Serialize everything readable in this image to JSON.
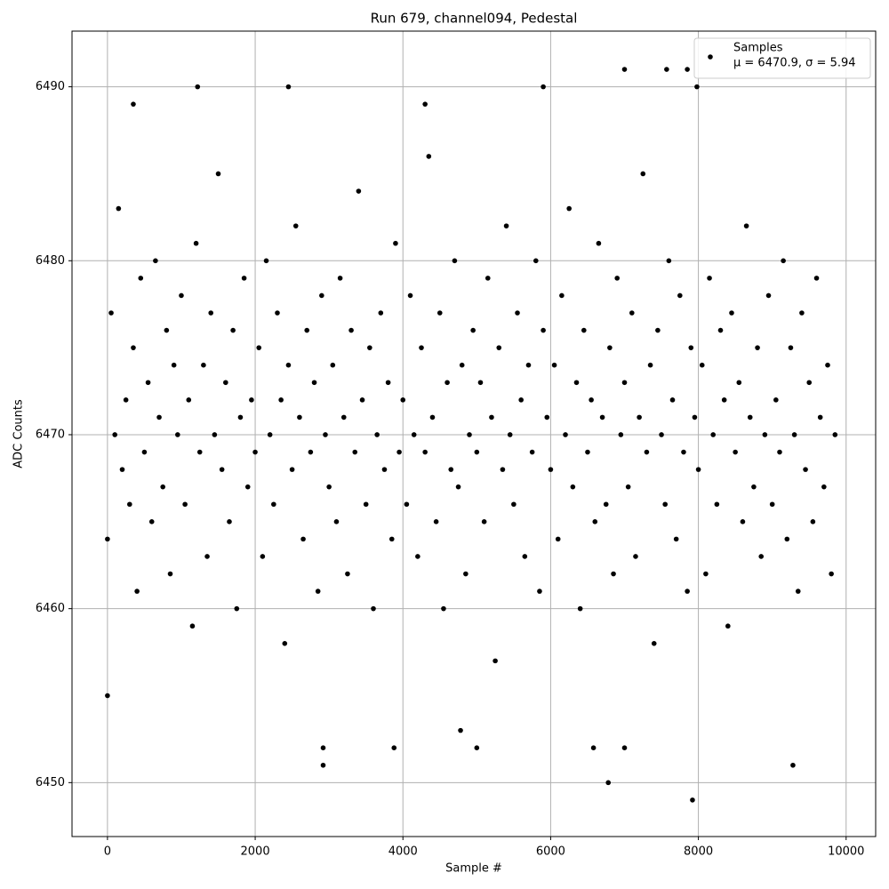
{
  "chart_data": {
    "type": "scatter",
    "title": "Run 679, channel094, Pedestal",
    "xlabel": "Sample #",
    "ylabel": "ADC Counts",
    "xlim": [
      -480,
      10400
    ],
    "ylim": [
      6446.9,
      6493.2
    ],
    "xticks": [
      0,
      2000,
      4000,
      6000,
      8000,
      10000
    ],
    "yticks": [
      6450,
      6460,
      6470,
      6480,
      6490
    ],
    "grid": true,
    "legend": "upper right",
    "legend_text": "μ = 6470.9, σ = 5.94",
    "series": [
      {
        "name": "Samples",
        "color": "#000000",
        "x": [
          0,
          50,
          100,
          150,
          200,
          250,
          300,
          350,
          400,
          450,
          500,
          550,
          600,
          650,
          700,
          750,
          800,
          850,
          900,
          950,
          1000,
          1050,
          1100,
          1150,
          1200,
          1250,
          1300,
          1350,
          1400,
          1450,
          1500,
          1550,
          1600,
          1650,
          1700,
          1750,
          1800,
          1850,
          1900,
          1950,
          2000,
          2050,
          2100,
          2150,
          2200,
          2250,
          2300,
          2350,
          2400,
          2450,
          2500,
          2550,
          2600,
          2650,
          2700,
          2750,
          2800,
          2850,
          2900,
          2950,
          3000,
          3050,
          3100,
          3150,
          3200,
          3250,
          3300,
          3350,
          3400,
          3450,
          3500,
          3550,
          3600,
          3650,
          3700,
          3750,
          3800,
          3850,
          3900,
          3950,
          4000,
          4050,
          4100,
          4150,
          4200,
          4250,
          4300,
          4350,
          4400,
          4450,
          4500,
          4550,
          4600,
          4650,
          4700,
          4750,
          4800,
          4850,
          4900,
          4950,
          5000,
          5050,
          5100,
          5150,
          5200,
          5250,
          5300,
          5350,
          5400,
          5450,
          5500,
          5550,
          5600,
          5650,
          5700,
          5750,
          5800,
          5850,
          5900,
          5950,
          6000,
          6050,
          6100,
          6150,
          6200,
          6250,
          6300,
          6350,
          6400,
          6450,
          6500,
          6550,
          6600,
          6650,
          6700,
          6750,
          6800,
          6850,
          6900,
          6950,
          7000,
          7050,
          7100,
          7150,
          7200,
          7250,
          7300,
          7350,
          7400,
          7450,
          7500,
          7550,
          7600,
          7650,
          7700,
          7750,
          7800,
          7850,
          7900,
          7950,
          8000,
          8050,
          8100,
          8150,
          8200,
          8250,
          8300,
          8350,
          8400,
          8450,
          8500,
          8550,
          8600,
          8650,
          8700,
          8750,
          8800,
          8850,
          8900,
          8950,
          9000,
          9050,
          9100,
          9150,
          9200,
          9250,
          9300,
          9350,
          9400,
          9450,
          9500,
          9550,
          9600,
          9650,
          9700,
          9750,
          9800,
          9850,
          0,
          1220,
          2450,
          5900,
          7000,
          7570,
          7850,
          7980,
          2920,
          2920,
          3880,
          4780,
          5000,
          6580,
          6780,
          7000,
          7920,
          9280,
          350,
          4300
        ],
        "values": [
          6464,
          6477,
          6470,
          6483,
          6468,
          6472,
          6466,
          6475,
          6461,
          6479,
          6469,
          6473,
          6465,
          6480,
          6471,
          6467,
          6476,
          6462,
          6474,
          6470,
          6478,
          6466,
          6472,
          6459,
          6481,
          6469,
          6474,
          6463,
          6477,
          6470,
          6485,
          6468,
          6473,
          6465,
          6476,
          6460,
          6471,
          6479,
          6467,
          6472,
          6469,
          6475,
          6463,
          6480,
          6470,
          6466,
          6477,
          6472,
          6458,
          6474,
          6468,
          6482,
          6471,
          6464,
          6476,
          6469,
          6473,
          6461,
          6478,
          6470,
          6467,
          6474,
          6465,
          6479,
          6471,
          6462,
          6476,
          6469,
          6484,
          6472,
          6466,
          6475,
          6460,
          6470,
          6477,
          6468,
          6473,
          6464,
          6481,
          6469,
          6472,
          6466,
          6478,
          6470,
          6463,
          6475,
          6469,
          6486,
          6471,
          6465,
          6477,
          6460,
          6473,
          6468,
          6480,
          6467,
          6474,
          6462,
          6470,
          6476,
          6469,
          6473,
          6465,
          6479,
          6471,
          6457,
          6475,
          6468,
          6482,
          6470,
          6466,
          6477,
          6472,
          6463,
          6474,
          6469,
          6480,
          6461,
          6476,
          6471,
          6468,
          6474,
          6464,
          6478,
          6470,
          6483,
          6467,
          6473,
          6460,
          6476,
          6469,
          6472,
          6465,
          6481,
          6471,
          6466,
          6475,
          6462,
          6479,
          6470,
          6473,
          6467,
          6477,
          6463,
          6471,
          6485,
          6469,
          6474,
          6458,
          6476,
          6470,
          6466,
          6480,
          6472,
          6464,
          6478,
          6469,
          6461,
          6475,
          6471,
          6468,
          6474,
          6462,
          6479,
          6470,
          6466,
          6476,
          6472,
          6459,
          6477,
          6469,
          6473,
          6465,
          6482,
          6471,
          6467,
          6475,
          6463,
          6470,
          6478,
          6466,
          6472,
          6469,
          6480,
          6464,
          6475,
          6470,
          6461,
          6477,
          6468,
          6473,
          6465,
          6479,
          6471,
          6467,
          6474,
          6462,
          6470,
          6455,
          6490,
          6490,
          6490,
          6491,
          6491,
          6491,
          6490,
          6451,
          6452,
          6452,
          6453,
          6452,
          6452,
          6450,
          6452,
          6449,
          6451,
          6489,
          6489
        ]
      }
    ]
  }
}
